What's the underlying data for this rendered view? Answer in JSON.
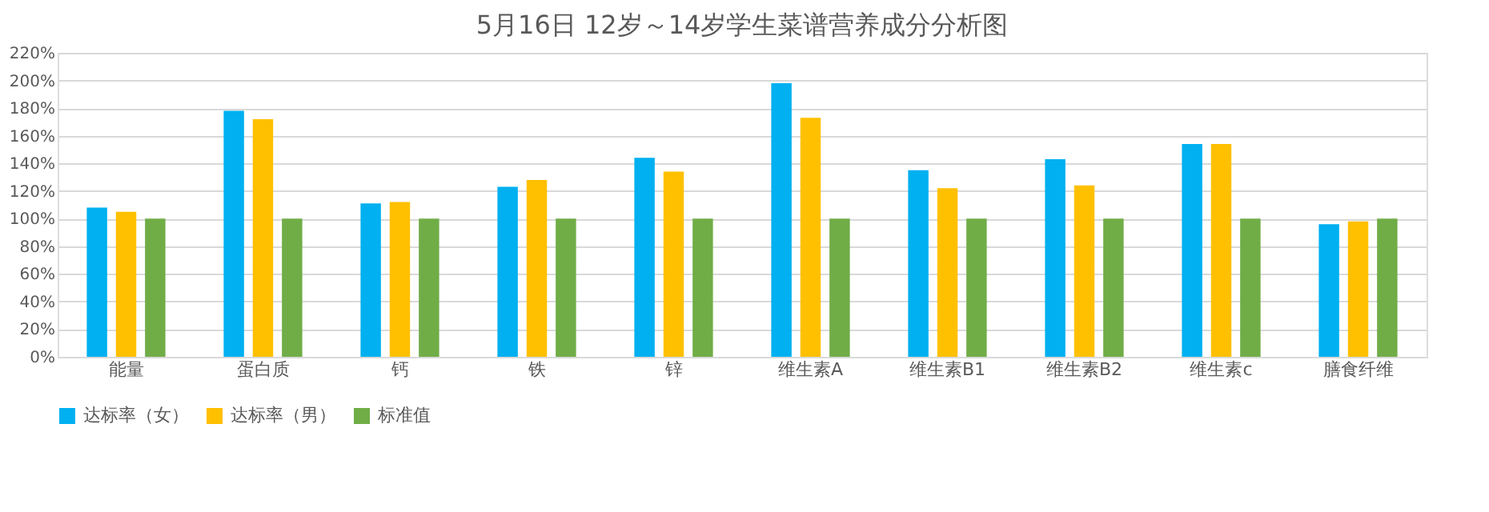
{
  "chart_data": {
    "type": "bar",
    "title": "5月16日 12岁～14岁学生菜谱营养成分分析图",
    "categories": [
      "能量",
      "蛋白质",
      "钙",
      "铁",
      "锌",
      "维生素A",
      "维生素B1",
      "维生素B2",
      "维生素c",
      "膳食纤维"
    ],
    "series": [
      {
        "name": "达标率（女）",
        "color": "#00b0f0",
        "values": [
          108,
          178,
          111,
          123,
          144,
          198,
          135,
          143,
          154,
          96
        ]
      },
      {
        "name": "达标率（男）",
        "color": "#ffc000",
        "values": [
          105,
          172,
          112,
          128,
          134,
          173,
          122,
          124,
          154,
          98
        ]
      },
      {
        "name": "标准值",
        "color": "#70ad47",
        "values": [
          100,
          100,
          100,
          100,
          100,
          100,
          100,
          100,
          100,
          100
        ]
      }
    ],
    "ylim": [
      0,
      220
    ],
    "yticks": [
      {
        "value": 0,
        "label": "0%"
      },
      {
        "value": 20,
        "label": "20%"
      },
      {
        "value": 40,
        "label": "40%"
      },
      {
        "value": 60,
        "label": "60%"
      },
      {
        "value": 80,
        "label": "80%"
      },
      {
        "value": 100,
        "label": "100%"
      },
      {
        "value": 120,
        "label": "120%"
      },
      {
        "value": 140,
        "label": "140%"
      },
      {
        "value": 160,
        "label": "160%"
      },
      {
        "value": 180,
        "label": "180%"
      },
      {
        "value": 200,
        "label": "200%"
      },
      {
        "value": 220,
        "label": "220%"
      }
    ],
    "grid": "y",
    "legend": "bottom"
  }
}
